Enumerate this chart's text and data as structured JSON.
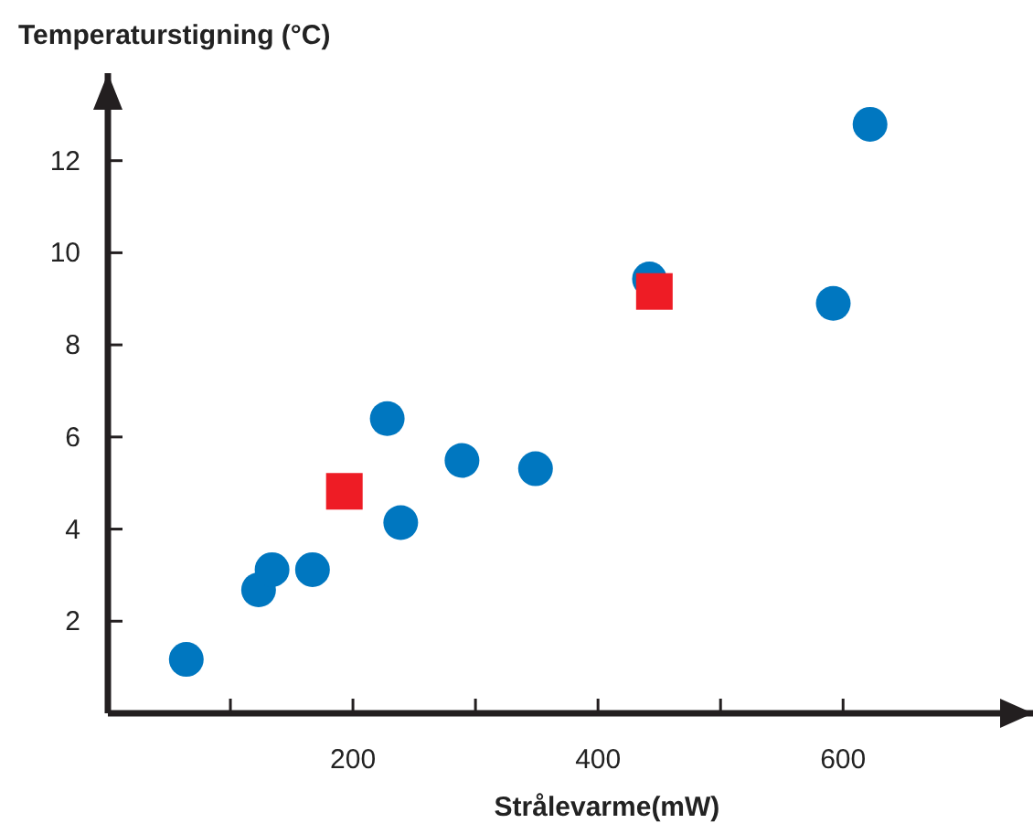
{
  "chart_data": {
    "type": "scatter",
    "title": "Temperaturstigning (°C)",
    "xlabel": "Strålevarme(mW)",
    "xlim": [
      0,
      755
    ],
    "ylim": [
      0,
      13.9
    ],
    "xticks": [
      {
        "value": 100,
        "label": null
      },
      200,
      {
        "value": 300,
        "label": null
      },
      400,
      {
        "value": 500,
        "label": null
      },
      600
    ],
    "yticks": [
      2,
      4,
      6,
      8,
      10,
      12
    ],
    "grid": false,
    "series": [
      {
        "color": "#0077c0",
        "marker": "circle",
        "x": [
          64,
          123,
          134,
          167,
          228,
          239,
          289,
          349,
          442,
          592,
          622
        ],
        "values": [
          1.17,
          2.68,
          3.12,
          3.12,
          6.4,
          4.14,
          5.49,
          5.31,
          9.43,
          8.9,
          12.79
        ]
      },
      {
        "color": "#ee1c25",
        "marker": "square",
        "x": [
          193,
          446
        ],
        "values": [
          4.82,
          9.16
        ]
      }
    ]
  }
}
